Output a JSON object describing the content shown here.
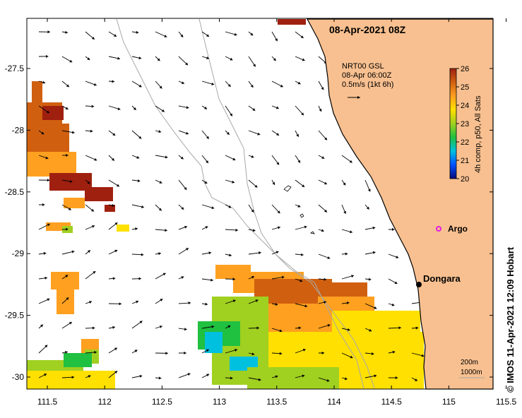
{
  "map": {
    "title": "08-Apr-2021 08Z",
    "source_lines": [
      "NRT00 GSL",
      "08-Apr 06:00Z",
      "0.5m/s (1kt 6h)"
    ],
    "credit": "©  IMOS 11-Apr-2021 12:09 Hobart",
    "x_ticks": [
      "111.5",
      "112",
      "112.5",
      "113",
      "113.5",
      "114",
      "114.5",
      "115",
      "115.5"
    ],
    "y_ticks": [
      "-27.5",
      "-28",
      "-28.5",
      "-29",
      "-29.5",
      "-30"
    ],
    "colorbar": {
      "label": "4h comp, p50, All Sats",
      "ticks": [
        "26",
        "25",
        "24",
        "23",
        "22",
        "21",
        "20"
      ],
      "min": 20,
      "max": 26,
      "colors": [
        "#050a78",
        "#0050ff",
        "#00c0e0",
        "#20c040",
        "#a0d020",
        "#ffe000",
        "#ffa020",
        "#d06010",
        "#a02010"
      ]
    },
    "places": [
      {
        "name": "Dongara",
        "lon": 114.93,
        "lat": -29.25
      }
    ],
    "argo": {
      "name": "Argo",
      "lon": 115.12,
      "lat": -28.83
    },
    "scale_labels": [
      "200m",
      "1000m"
    ],
    "colors": {
      "land": "#f8c090",
      "coast": "#000000",
      "arrow": "#000000",
      "bathy": "#a8a8a8",
      "argo": "#e020e0"
    }
  }
}
